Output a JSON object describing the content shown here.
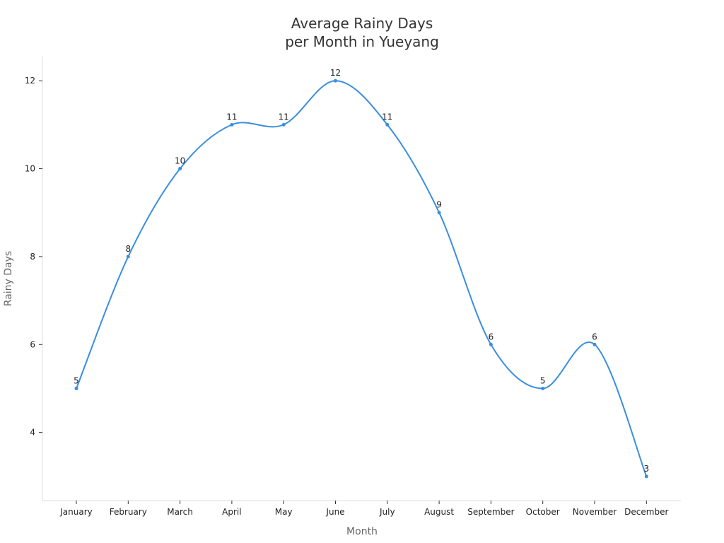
{
  "chart_data": {
    "type": "line",
    "title": [
      "Average Rainy Days",
      "per Month in Yueyang"
    ],
    "xlabel": "Month",
    "ylabel": "Rainy Days",
    "categories": [
      "January",
      "February",
      "March",
      "April",
      "May",
      "June",
      "July",
      "August",
      "September",
      "October",
      "November",
      "December"
    ],
    "series": [
      {
        "values": [
          5,
          8,
          10,
          11,
          11,
          12,
          11,
          9,
          6,
          5,
          6,
          3
        ],
        "color": "#3a8ee0"
      }
    ],
    "y_ticks": [
      4,
      6,
      8,
      10,
      12
    ],
    "ylim": [
      2.45,
      12.55
    ],
    "grid": false,
    "smooth": true,
    "data_labels": true,
    "axis_color": "#dddddd"
  }
}
